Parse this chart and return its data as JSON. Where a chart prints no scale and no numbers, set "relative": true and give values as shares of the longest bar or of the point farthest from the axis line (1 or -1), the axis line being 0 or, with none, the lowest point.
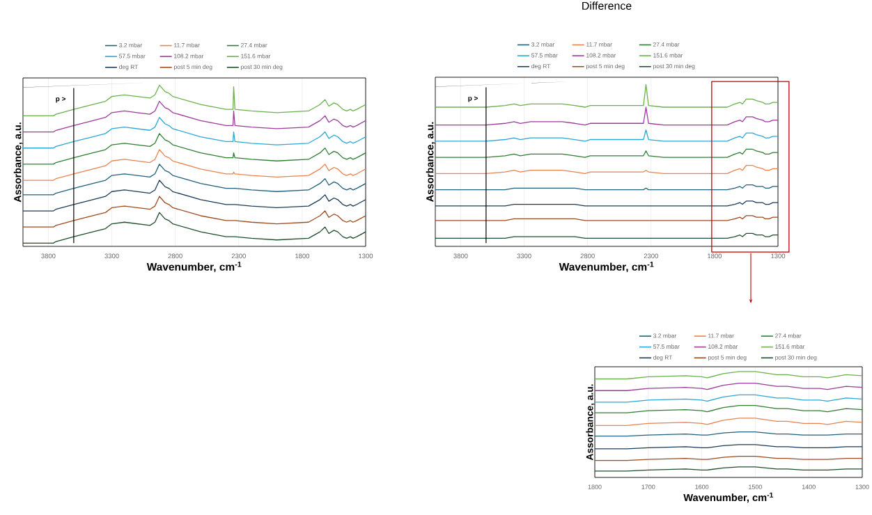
{
  "chart_data": [
    {
      "type": "line",
      "xlabel": "Wavenumber, cm$^{-1}$",
      "ylabel": "Assorbance, a.u.",
      "relative": true,
      "grid": "x",
      "legend": "top",
      "marker": "none",
      "line_style": "solid",
      "ref_lines": [
        {
          "axis": "x",
          "value": 3600,
          "label": "p >",
          "color": "#000000"
        }
      ],
      "xlim": [
        4000,
        1300
      ],
      "xticks": [
        3800,
        3300,
        2800,
        2300,
        1800,
        1300
      ],
      "x": [
        4000,
        3760,
        3740,
        3600,
        3450,
        3350,
        3300,
        3200,
        3100,
        3000,
        2960,
        2925,
        2880,
        2850,
        2820,
        2600,
        2400,
        2345,
        2340,
        2330,
        2200,
        2000,
        1750,
        1660,
        1620,
        1590,
        1550,
        1520,
        1480,
        1450,
        1420,
        1400,
        1370,
        1300
      ],
      "series": [
        {
          "name": "3.2 mbar",
          "color": "#1f5f7a",
          "values": [
            0.32,
            0.32,
            0.33,
            0.36,
            0.39,
            0.41,
            0.44,
            0.45,
            0.44,
            0.43,
            0.45,
            0.51,
            0.47,
            0.46,
            0.44,
            0.39,
            0.36,
            0.36,
            0.36,
            0.36,
            0.35,
            0.34,
            0.35,
            0.39,
            0.42,
            0.38,
            0.4,
            0.39,
            0.36,
            0.35,
            0.36,
            0.35,
            0.36,
            0.39
          ]
        },
        {
          "name": "11.7 mbar",
          "color": "#e8834f",
          "values": [
            0.41,
            0.41,
            0.42,
            0.45,
            0.48,
            0.5,
            0.53,
            0.54,
            0.53,
            0.52,
            0.54,
            0.6,
            0.56,
            0.55,
            0.53,
            0.48,
            0.45,
            0.45,
            0.46,
            0.45,
            0.44,
            0.43,
            0.44,
            0.48,
            0.51,
            0.47,
            0.49,
            0.48,
            0.45,
            0.44,
            0.45,
            0.44,
            0.45,
            0.48
          ]
        },
        {
          "name": "27.4 mbar",
          "color": "#2e7d32",
          "values": [
            0.51,
            0.51,
            0.52,
            0.55,
            0.58,
            0.6,
            0.63,
            0.64,
            0.63,
            0.62,
            0.64,
            0.7,
            0.66,
            0.65,
            0.63,
            0.58,
            0.55,
            0.55,
            0.58,
            0.55,
            0.54,
            0.53,
            0.54,
            0.58,
            0.61,
            0.57,
            0.59,
            0.58,
            0.55,
            0.54,
            0.55,
            0.54,
            0.55,
            0.58
          ]
        },
        {
          "name": "57.5 mbar",
          "color": "#2aa7d6",
          "values": [
            0.61,
            0.61,
            0.62,
            0.65,
            0.68,
            0.7,
            0.73,
            0.74,
            0.73,
            0.72,
            0.74,
            0.8,
            0.76,
            0.75,
            0.73,
            0.68,
            0.65,
            0.65,
            0.71,
            0.65,
            0.64,
            0.63,
            0.64,
            0.68,
            0.71,
            0.67,
            0.69,
            0.68,
            0.65,
            0.64,
            0.65,
            0.64,
            0.65,
            0.68
          ]
        },
        {
          "name": "108.2 mbar",
          "color": "#9b3a9b",
          "values": [
            0.71,
            0.71,
            0.72,
            0.75,
            0.78,
            0.8,
            0.83,
            0.84,
            0.83,
            0.82,
            0.84,
            0.9,
            0.86,
            0.85,
            0.83,
            0.78,
            0.75,
            0.75,
            0.84,
            0.75,
            0.74,
            0.73,
            0.74,
            0.78,
            0.81,
            0.77,
            0.79,
            0.78,
            0.75,
            0.74,
            0.75,
            0.74,
            0.75,
            0.78
          ]
        },
        {
          "name": "151.6 mbar",
          "color": "#6ab04c",
          "values": [
            0.81,
            0.81,
            0.82,
            0.85,
            0.88,
            0.9,
            0.93,
            0.94,
            0.93,
            0.92,
            0.94,
            1.0,
            0.96,
            0.95,
            0.93,
            0.88,
            0.85,
            0.85,
            0.99,
            0.85,
            0.84,
            0.83,
            0.84,
            0.88,
            0.91,
            0.87,
            0.89,
            0.88,
            0.85,
            0.84,
            0.85,
            0.84,
            0.85,
            0.88
          ]
        },
        {
          "name": "deg RT",
          "color": "#1b3a57",
          "values": [
            0.22,
            0.22,
            0.23,
            0.26,
            0.29,
            0.31,
            0.34,
            0.35,
            0.34,
            0.33,
            0.35,
            0.41,
            0.37,
            0.36,
            0.34,
            0.29,
            0.26,
            0.26,
            0.26,
            0.26,
            0.25,
            0.24,
            0.25,
            0.29,
            0.32,
            0.28,
            0.3,
            0.29,
            0.26,
            0.25,
            0.26,
            0.25,
            0.26,
            0.29
          ]
        },
        {
          "name": "post 5 min deg",
          "color": "#9c4a1f",
          "values": [
            0.12,
            0.12,
            0.13,
            0.16,
            0.19,
            0.21,
            0.24,
            0.25,
            0.24,
            0.23,
            0.25,
            0.31,
            0.27,
            0.26,
            0.24,
            0.19,
            0.16,
            0.16,
            0.16,
            0.16,
            0.15,
            0.14,
            0.15,
            0.19,
            0.22,
            0.18,
            0.2,
            0.19,
            0.16,
            0.15,
            0.16,
            0.15,
            0.16,
            0.19
          ]
        },
        {
          "name": "post 30 min deg",
          "color": "#1e4d2b",
          "values": [
            0.02,
            0.02,
            0.03,
            0.06,
            0.09,
            0.11,
            0.14,
            0.15,
            0.14,
            0.13,
            0.15,
            0.21,
            0.17,
            0.16,
            0.14,
            0.09,
            0.06,
            0.06,
            0.06,
            0.06,
            0.05,
            0.04,
            0.05,
            0.09,
            0.12,
            0.08,
            0.1,
            0.09,
            0.06,
            0.05,
            0.06,
            0.05,
            0.06,
            0.09
          ]
        }
      ]
    },
    {
      "type": "line",
      "title": "Difference",
      "xlabel": "Wavenumber, cm$^{-1}$",
      "ylabel": "Assorbance, a.u.",
      "relative": true,
      "grid": "x",
      "legend": "top",
      "marker": "none",
      "line_style": "solid",
      "ref_lines": [
        {
          "axis": "x",
          "value": 3600,
          "label": "p >",
          "color": "#000000"
        }
      ],
      "xlim": [
        4000,
        1300
      ],
      "xticks": [
        3800,
        3300,
        2800,
        2300,
        1800,
        1300
      ],
      "x": [
        4000,
        3600,
        3450,
        3380,
        3330,
        3250,
        3150,
        3000,
        2900,
        2820,
        2780,
        2500,
        2360,
        2340,
        2320,
        2200,
        1800,
        1700,
        1640,
        1600,
        1580,
        1550,
        1500,
        1470,
        1420,
        1400,
        1370,
        1340,
        1300
      ],
      "series": [
        {
          "name": "3.2 mbar",
          "color": "#1f5f7a",
          "values": [
            0.35,
            0.35,
            0.35,
            0.36,
            0.36,
            0.36,
            0.36,
            0.36,
            0.36,
            0.35,
            0.35,
            0.35,
            0.35,
            0.36,
            0.35,
            0.35,
            0.35,
            0.35,
            0.36,
            0.37,
            0.36,
            0.38,
            0.38,
            0.37,
            0.37,
            0.36,
            0.36,
            0.37,
            0.37
          ]
        },
        {
          "name": "11.7 mbar",
          "color": "#e8834f",
          "values": [
            0.45,
            0.45,
            0.46,
            0.47,
            0.46,
            0.47,
            0.47,
            0.47,
            0.46,
            0.45,
            0.46,
            0.46,
            0.46,
            0.47,
            0.46,
            0.45,
            0.45,
            0.45,
            0.47,
            0.48,
            0.47,
            0.5,
            0.5,
            0.49,
            0.48,
            0.47,
            0.47,
            0.48,
            0.48
          ]
        },
        {
          "name": "27.4 mbar",
          "color": "#2e7d32",
          "values": [
            0.55,
            0.55,
            0.56,
            0.57,
            0.56,
            0.57,
            0.57,
            0.57,
            0.56,
            0.55,
            0.56,
            0.56,
            0.56,
            0.59,
            0.56,
            0.55,
            0.55,
            0.55,
            0.57,
            0.58,
            0.57,
            0.6,
            0.6,
            0.59,
            0.58,
            0.57,
            0.57,
            0.58,
            0.58
          ]
        },
        {
          "name": "57.5 mbar",
          "color": "#2aa7d6",
          "values": [
            0.65,
            0.65,
            0.66,
            0.67,
            0.66,
            0.67,
            0.67,
            0.67,
            0.66,
            0.65,
            0.66,
            0.66,
            0.66,
            0.72,
            0.66,
            0.65,
            0.65,
            0.65,
            0.67,
            0.68,
            0.67,
            0.7,
            0.7,
            0.69,
            0.68,
            0.67,
            0.67,
            0.68,
            0.68
          ]
        },
        {
          "name": "108.2 mbar",
          "color": "#9b3a9b",
          "values": [
            0.75,
            0.75,
            0.76,
            0.77,
            0.76,
            0.77,
            0.77,
            0.77,
            0.76,
            0.75,
            0.76,
            0.76,
            0.76,
            0.86,
            0.76,
            0.75,
            0.75,
            0.75,
            0.77,
            0.78,
            0.77,
            0.8,
            0.8,
            0.79,
            0.78,
            0.77,
            0.77,
            0.78,
            0.78
          ]
        },
        {
          "name": "151.6 mbar",
          "color": "#6ab04c",
          "values": [
            0.86,
            0.86,
            0.87,
            0.88,
            0.87,
            0.88,
            0.88,
            0.88,
            0.87,
            0.86,
            0.87,
            0.87,
            0.87,
            1.0,
            0.87,
            0.86,
            0.86,
            0.86,
            0.88,
            0.89,
            0.88,
            0.91,
            0.91,
            0.9,
            0.89,
            0.88,
            0.88,
            0.89,
            0.89
          ]
        },
        {
          "name": "deg RT",
          "color": "#1b3a57",
          "values": [
            0.25,
            0.25,
            0.25,
            0.26,
            0.26,
            0.26,
            0.26,
            0.26,
            0.26,
            0.25,
            0.25,
            0.25,
            0.25,
            0.25,
            0.25,
            0.25,
            0.25,
            0.25,
            0.26,
            0.27,
            0.26,
            0.28,
            0.28,
            0.27,
            0.27,
            0.26,
            0.26,
            0.27,
            0.27
          ]
        },
        {
          "name": "post 5 min deg",
          "color": "#9c4a1f",
          "values": [
            0.16,
            0.16,
            0.16,
            0.17,
            0.17,
            0.17,
            0.17,
            0.17,
            0.17,
            0.16,
            0.16,
            0.16,
            0.16,
            0.16,
            0.16,
            0.16,
            0.16,
            0.16,
            0.17,
            0.18,
            0.17,
            0.19,
            0.19,
            0.18,
            0.18,
            0.17,
            0.17,
            0.18,
            0.18
          ]
        },
        {
          "name": "post 30 min deg",
          "color": "#1e4d2b",
          "values": [
            0.05,
            0.05,
            0.05,
            0.06,
            0.06,
            0.06,
            0.06,
            0.06,
            0.06,
            0.05,
            0.05,
            0.05,
            0.05,
            0.05,
            0.05,
            0.05,
            0.05,
            0.05,
            0.06,
            0.07,
            0.06,
            0.08,
            0.08,
            0.07,
            0.07,
            0.06,
            0.06,
            0.07,
            0.07
          ]
        }
      ]
    },
    {
      "type": "line",
      "xlabel": "Wavenumber, cm$^{-1}$",
      "ylabel": "Assorbance, a.u.",
      "relative": true,
      "grid": "x",
      "legend": "top",
      "marker": "none",
      "line_style": "solid",
      "xlim": [
        1800,
        1300
      ],
      "xticks": [
        1800,
        1700,
        1600,
        1500,
        1400,
        1300
      ],
      "x": [
        1800,
        1740,
        1700,
        1630,
        1600,
        1590,
        1560,
        1530,
        1500,
        1460,
        1440,
        1410,
        1380,
        1365,
        1330,
        1300
      ],
      "series": [
        {
          "name": "3.2 mbar",
          "color": "#1f5f7a",
          "values": [
            0.39,
            0.39,
            0.4,
            0.41,
            0.4,
            0.4,
            0.42,
            0.43,
            0.43,
            0.41,
            0.41,
            0.4,
            0.4,
            0.4,
            0.41,
            0.41
          ]
        },
        {
          "name": "11.7 mbar",
          "color": "#e8834f",
          "values": [
            0.49,
            0.49,
            0.51,
            0.52,
            0.51,
            0.5,
            0.54,
            0.56,
            0.56,
            0.53,
            0.53,
            0.51,
            0.51,
            0.5,
            0.53,
            0.52
          ]
        },
        {
          "name": "27.4 mbar",
          "color": "#2e7d32",
          "values": [
            0.61,
            0.61,
            0.63,
            0.64,
            0.63,
            0.62,
            0.66,
            0.68,
            0.68,
            0.65,
            0.65,
            0.63,
            0.63,
            0.62,
            0.65,
            0.64
          ]
        },
        {
          "name": "57.5 mbar",
          "color": "#2aa7d6",
          "values": [
            0.71,
            0.71,
            0.73,
            0.74,
            0.73,
            0.72,
            0.76,
            0.78,
            0.78,
            0.75,
            0.75,
            0.73,
            0.73,
            0.72,
            0.75,
            0.74
          ]
        },
        {
          "name": "108.2 mbar",
          "color": "#9b3a9b",
          "values": [
            0.82,
            0.82,
            0.84,
            0.85,
            0.84,
            0.83,
            0.87,
            0.89,
            0.89,
            0.86,
            0.86,
            0.84,
            0.84,
            0.83,
            0.86,
            0.85
          ]
        },
        {
          "name": "151.6 mbar",
          "color": "#6ab04c",
          "values": [
            0.93,
            0.93,
            0.95,
            0.96,
            0.95,
            0.94,
            0.98,
            1.0,
            1.0,
            0.97,
            0.97,
            0.95,
            0.95,
            0.94,
            0.97,
            0.96
          ]
        },
        {
          "name": "deg RT",
          "color": "#1b3a57",
          "values": [
            0.27,
            0.27,
            0.28,
            0.29,
            0.28,
            0.28,
            0.3,
            0.31,
            0.31,
            0.29,
            0.29,
            0.28,
            0.28,
            0.28,
            0.29,
            0.29
          ]
        },
        {
          "name": "post 5 min deg",
          "color": "#9c4a1f",
          "values": [
            0.16,
            0.16,
            0.17,
            0.18,
            0.17,
            0.17,
            0.19,
            0.2,
            0.2,
            0.18,
            0.18,
            0.17,
            0.17,
            0.17,
            0.18,
            0.18
          ]
        },
        {
          "name": "post 30 min deg",
          "color": "#1e4d2b",
          "values": [
            0.06,
            0.06,
            0.07,
            0.08,
            0.07,
            0.07,
            0.09,
            0.1,
            0.1,
            0.08,
            0.08,
            0.07,
            0.07,
            0.07,
            0.08,
            0.08
          ]
        }
      ]
    }
  ]
}
